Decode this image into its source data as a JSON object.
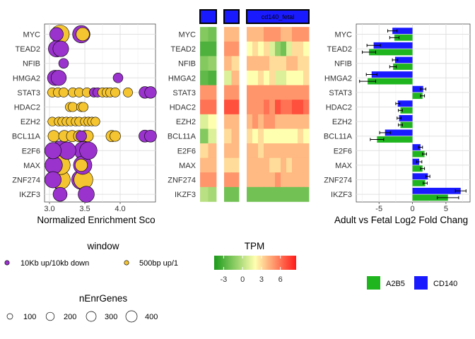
{
  "genes": [
    "MYC",
    "TEAD2",
    "NFIB",
    "HMGA2",
    "STAT3",
    "HDAC2",
    "EZH2",
    "BCL11A",
    "E2F6",
    "MAX",
    "ZNF274",
    "IKZF3"
  ],
  "colors": {
    "window_10kb": "#9A32CD",
    "window_500bp": "#F5C431",
    "a2b5": "#1FB51F",
    "cd140": "#1A1AFF",
    "heat_low": "#1A9A1A",
    "heat_mid": "#FFFFB0",
    "heat_high": "#FF1A1A"
  },
  "chart_data": [
    {
      "type": "scatter",
      "xlabel": "Normalized Enrichment Sco",
      "xlim": [
        2.93,
        4.5
      ],
      "xticks": [
        "3.0",
        "3.5",
        "4.0"
      ],
      "grid": true,
      "points": [
        {
          "gene": "MYC",
          "x": 3.1,
          "w": "10kb",
          "n": 180
        },
        {
          "gene": "MYC",
          "x": 3.15,
          "w": "500bp",
          "n": 400
        },
        {
          "gene": "MYC",
          "x": 3.45,
          "w": "10kb",
          "n": 350
        },
        {
          "gene": "MYC",
          "x": 3.47,
          "w": "500bp",
          "n": 170
        },
        {
          "gene": "TEAD2",
          "x": 3.1,
          "w": "10kb",
          "n": 300
        },
        {
          "gene": "TEAD2",
          "x": 3.16,
          "w": "10kb",
          "n": 270
        },
        {
          "gene": "NFIB",
          "x": 3.2,
          "w": "10kb",
          "n": 70
        },
        {
          "gene": "HMGA2",
          "x": 3.08,
          "w": "10kb",
          "n": 250
        },
        {
          "gene": "HMGA2",
          "x": 3.13,
          "w": "10kb",
          "n": 250
        },
        {
          "gene": "HMGA2",
          "x": 3.97,
          "w": "10kb",
          "n": 70
        },
        {
          "gene": "STAT3",
          "x": 3.04,
          "w": "500bp",
          "n": 60
        },
        {
          "gene": "STAT3",
          "x": 3.12,
          "w": "500bp",
          "n": 60
        },
        {
          "gene": "STAT3",
          "x": 3.2,
          "w": "500bp",
          "n": 60
        },
        {
          "gene": "STAT3",
          "x": 3.33,
          "w": "500bp",
          "n": 60
        },
        {
          "gene": "STAT3",
          "x": 3.42,
          "w": "500bp",
          "n": 60
        },
        {
          "gene": "STAT3",
          "x": 3.53,
          "w": "500bp",
          "n": 60
        },
        {
          "gene": "STAT3",
          "x": 3.63,
          "w": "10kb",
          "n": 60
        },
        {
          "gene": "STAT3",
          "x": 3.68,
          "w": "10kb",
          "n": 60
        },
        {
          "gene": "STAT3",
          "x": 3.75,
          "w": "500bp",
          "n": 60
        },
        {
          "gene": "STAT3",
          "x": 3.81,
          "w": "500bp",
          "n": 60
        },
        {
          "gene": "STAT3",
          "x": 3.86,
          "w": "500bp",
          "n": 60
        },
        {
          "gene": "STAT3",
          "x": 3.93,
          "w": "500bp",
          "n": 60
        },
        {
          "gene": "STAT3",
          "x": 4.11,
          "w": "500bp",
          "n": 60
        },
        {
          "gene": "STAT3",
          "x": 4.35,
          "w": "10kb",
          "n": 120
        },
        {
          "gene": "STAT3",
          "x": 4.43,
          "w": "10kb",
          "n": 120
        },
        {
          "gene": "HDAC2",
          "x": 3.29,
          "w": "500bp",
          "n": 60
        },
        {
          "gene": "HDAC2",
          "x": 3.33,
          "w": "500bp",
          "n": 60
        },
        {
          "gene": "HDAC2",
          "x": 3.45,
          "w": "500bp",
          "n": 60
        },
        {
          "gene": "HDAC2",
          "x": 3.48,
          "w": "500bp",
          "n": 60
        },
        {
          "gene": "EZH2",
          "x": 3.04,
          "w": "500bp",
          "n": 50
        },
        {
          "gene": "EZH2",
          "x": 3.13,
          "w": "500bp",
          "n": 50
        },
        {
          "gene": "EZH2",
          "x": 3.18,
          "w": "500bp",
          "n": 50
        },
        {
          "gene": "EZH2",
          "x": 3.24,
          "w": "500bp",
          "n": 50
        },
        {
          "gene": "EZH2",
          "x": 3.3,
          "w": "500bp",
          "n": 50
        },
        {
          "gene": "EZH2",
          "x": 3.37,
          "w": "500bp",
          "n": 50
        },
        {
          "gene": "EZH2",
          "x": 3.42,
          "w": "500bp",
          "n": 50
        },
        {
          "gene": "EZH2",
          "x": 3.5,
          "w": "500bp",
          "n": 50
        },
        {
          "gene": "EZH2",
          "x": 3.55,
          "w": "500bp",
          "n": 50
        },
        {
          "gene": "EZH2",
          "x": 3.6,
          "w": "500bp",
          "n": 50
        },
        {
          "gene": "EZH2",
          "x": 3.65,
          "w": "500bp",
          "n": 50
        },
        {
          "gene": "BCL11A",
          "x": 3.06,
          "w": "500bp",
          "n": 110
        },
        {
          "gene": "BCL11A",
          "x": 3.21,
          "w": "500bp",
          "n": 110
        },
        {
          "gene": "BCL11A",
          "x": 3.32,
          "w": "500bp",
          "n": 110
        },
        {
          "gene": "BCL11A",
          "x": 3.42,
          "w": "500bp",
          "n": 110
        },
        {
          "gene": "BCL11A",
          "x": 3.45,
          "w": "10kb",
          "n": 90
        },
        {
          "gene": "BCL11A",
          "x": 3.5,
          "w": "500bp",
          "n": 110
        },
        {
          "gene": "BCL11A",
          "x": 3.54,
          "w": "500bp",
          "n": 110
        },
        {
          "gene": "BCL11A",
          "x": 3.88,
          "w": "500bp",
          "n": 110
        },
        {
          "gene": "BCL11A",
          "x": 3.93,
          "w": "500bp",
          "n": 90
        },
        {
          "gene": "BCL11A",
          "x": 4.35,
          "w": "10kb",
          "n": 130
        },
        {
          "gene": "BCL11A",
          "x": 4.43,
          "w": "10kb",
          "n": 130
        },
        {
          "gene": "E2F6",
          "x": 3.05,
          "w": "10kb",
          "n": 300
        },
        {
          "gene": "E2F6",
          "x": 3.15,
          "w": "10kb",
          "n": 450
        },
        {
          "gene": "E2F6",
          "x": 3.25,
          "w": "10kb",
          "n": 350
        },
        {
          "gene": "E2F6",
          "x": 3.48,
          "w": "10kb",
          "n": 400
        },
        {
          "gene": "E2F6",
          "x": 3.55,
          "w": "10kb",
          "n": 350
        },
        {
          "gene": "MAX",
          "x": 3.06,
          "w": "10kb",
          "n": 350
        },
        {
          "gene": "MAX",
          "x": 3.16,
          "w": "500bp",
          "n": 420
        },
        {
          "gene": "MAX",
          "x": 3.47,
          "w": "10kb",
          "n": 400
        },
        {
          "gene": "MAX",
          "x": 3.45,
          "w": "500bp",
          "n": 140
        },
        {
          "gene": "ZNF274",
          "x": 3.05,
          "w": "10kb",
          "n": 300
        },
        {
          "gene": "ZNF274",
          "x": 3.15,
          "w": "10kb",
          "n": 450
        },
        {
          "gene": "ZNF274",
          "x": 3.16,
          "w": "500bp",
          "n": 430
        },
        {
          "gene": "ZNF274",
          "x": 3.45,
          "w": "10kb",
          "n": 450
        },
        {
          "gene": "ZNF274",
          "x": 3.48,
          "w": "500bp",
          "n": 430
        },
        {
          "gene": "IKZF3",
          "x": 3.15,
          "w": "10kb",
          "n": 200
        },
        {
          "gene": "IKZF3",
          "x": 3.52,
          "w": "10kb",
          "n": 290
        }
      ]
    },
    {
      "type": "heatmap",
      "panels": [
        {
          "label": "",
          "columns": 2
        },
        {
          "label": "",
          "columns": 2
        },
        {
          "label": "cd140_fetal",
          "columns": 11
        }
      ],
      "rows": [
        [
          -1.5,
          -2,
          4,
          4,
          4,
          4,
          4,
          5,
          5,
          5,
          4,
          4,
          5,
          5,
          5
        ],
        [
          -3,
          -3,
          5,
          5,
          2,
          3,
          2,
          3,
          1,
          -1,
          -2,
          1,
          3,
          3,
          2
        ],
        [
          -1.5,
          -1,
          4,
          3,
          4,
          4,
          4,
          4,
          3,
          3,
          3,
          4,
          4,
          3,
          3
        ],
        [
          -2.5,
          -3,
          1,
          4,
          2,
          2,
          3,
          2,
          3,
          1,
          1,
          2,
          2,
          2,
          3
        ],
        [
          5,
          5,
          5,
          5,
          5,
          5,
          5,
          5,
          5,
          5,
          5,
          5,
          5,
          5,
          5
        ],
        [
          6,
          6,
          7,
          7,
          5,
          5,
          5,
          6,
          5,
          7,
          6,
          6,
          7,
          7,
          6
        ],
        [
          1,
          2,
          4,
          4,
          4,
          5,
          4,
          5,
          5,
          4,
          4,
          4,
          4,
          4,
          4
        ],
        [
          -1.5,
          1,
          3,
          4,
          3,
          2,
          3,
          2,
          2,
          2,
          2,
          2,
          2,
          3,
          2
        ],
        [
          3,
          4,
          4,
          4,
          4,
          4,
          3,
          4,
          4,
          4,
          4,
          4,
          4,
          4,
          4
        ],
        [
          4,
          4,
          3,
          3,
          4,
          4,
          4,
          4,
          3,
          3,
          4,
          3,
          4,
          4,
          4
        ],
        [
          5,
          5,
          5,
          5,
          4,
          4,
          4,
          4,
          4,
          5,
          4,
          4,
          4,
          4,
          4
        ],
        [
          0,
          -0.5,
          -2,
          -2,
          -2,
          -2,
          -2,
          -2,
          -2,
          -2,
          -2,
          -2,
          -2,
          -2,
          -2
        ]
      ],
      "colorscale_limits": [
        -4.5,
        8.5
      ]
    },
    {
      "type": "bar",
      "xlabel": "Adult vs Fetal Log2 Fold Chang",
      "xlim": [
        -8.4,
        8.6
      ],
      "xticks": [
        -5,
        0,
        5
      ],
      "grid": true,
      "series": [
        {
          "name": "A2B5",
          "values": [
            -2.7,
            -6.5,
            -2.9,
            -6.7,
            1.5,
            -1.8,
            -1.8,
            -5.3,
            1.8,
            1.5,
            1.9,
            5.3
          ],
          "err": [
            0.7,
            1.0,
            0.5,
            1.2,
            0.3,
            0.3,
            0.3,
            1.0,
            0.3,
            0.3,
            0.3,
            1.6
          ]
        },
        {
          "name": "CD140",
          "values": [
            -3.0,
            -5.8,
            -2.6,
            -6.1,
            1.6,
            -2.2,
            -2.0,
            -4.1,
            1.2,
            1.0,
            2.3,
            7.2
          ],
          "err": [
            0.7,
            1.0,
            0.4,
            0.8,
            0.4,
            0.3,
            0.3,
            0.8,
            0.3,
            0.4,
            0.3,
            0.8
          ]
        }
      ]
    }
  ],
  "legends": {
    "window": {
      "title": "window",
      "items": [
        "10Kb up/10kb down",
        "500bp up/1"
      ]
    },
    "nEnrGenes": {
      "title": "nEnrGenes",
      "items": [
        "100",
        "200",
        "300",
        "400"
      ]
    },
    "tpm": {
      "title": "TPM",
      "ticks": [
        "-3",
        "0",
        "3",
        "6"
      ]
    },
    "fill": {
      "items": [
        "A2B5",
        "CD140"
      ]
    }
  }
}
